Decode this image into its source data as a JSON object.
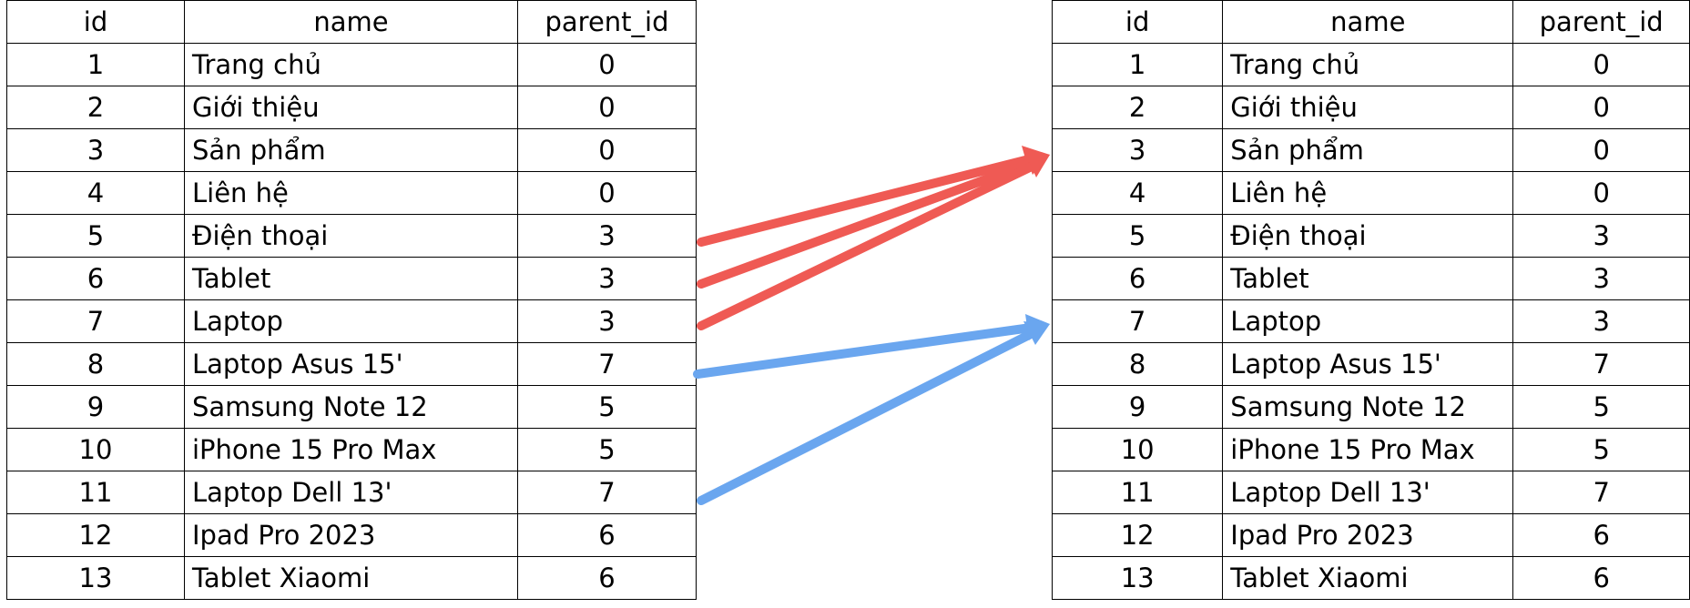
{
  "tables": {
    "left": {
      "headers": {
        "id": "id",
        "name": "name",
        "parent_id": "parent_id"
      },
      "rows": [
        {
          "id": "1",
          "name": "Trang chủ",
          "parent_id": "0"
        },
        {
          "id": "2",
          "name": "Giới thiệu",
          "parent_id": "0"
        },
        {
          "id": "3",
          "name": "Sản phẩm",
          "parent_id": "0"
        },
        {
          "id": "4",
          "name": "Liên hệ",
          "parent_id": "0"
        },
        {
          "id": "5",
          "name": "Điện thoại",
          "parent_id": "3"
        },
        {
          "id": "6",
          "name": "Tablet",
          "parent_id": "3"
        },
        {
          "id": "7",
          "name": "Laptop",
          "parent_id": "3"
        },
        {
          "id": "8",
          "name": "Laptop Asus 15'",
          "parent_id": "7"
        },
        {
          "id": "9",
          "name": "Samsung Note 12",
          "parent_id": "5"
        },
        {
          "id": "10",
          "name": "iPhone 15 Pro Max",
          "parent_id": "5"
        },
        {
          "id": "11",
          "name": "Laptop Dell 13'",
          "parent_id": "7"
        },
        {
          "id": "12",
          "name": "Ipad Pro 2023",
          "parent_id": "6"
        },
        {
          "id": "13",
          "name": "Tablet Xiaomi",
          "parent_id": "6"
        }
      ]
    },
    "right": {
      "headers": {
        "id": "id",
        "name": "name",
        "parent_id": "parent_id"
      },
      "rows": [
        {
          "id": "1",
          "name": "Trang chủ",
          "parent_id": "0"
        },
        {
          "id": "2",
          "name": "Giới thiệu",
          "parent_id": "0"
        },
        {
          "id": "3",
          "name": "Sản phẩm",
          "parent_id": "0"
        },
        {
          "id": "4",
          "name": "Liên hệ",
          "parent_id": "0"
        },
        {
          "id": "5",
          "name": "Điện thoại",
          "parent_id": "3"
        },
        {
          "id": "6",
          "name": "Tablet",
          "parent_id": "3"
        },
        {
          "id": "7",
          "name": "Laptop",
          "parent_id": "3"
        },
        {
          "id": "8",
          "name": "Laptop Asus 15'",
          "parent_id": "7"
        },
        {
          "id": "9",
          "name": "Samsung Note 12",
          "parent_id": "5"
        },
        {
          "id": "10",
          "name": "iPhone 15 Pro Max",
          "parent_id": "5"
        },
        {
          "id": "11",
          "name": "Laptop Dell 13'",
          "parent_id": "7"
        },
        {
          "id": "12",
          "name": "Ipad Pro 2023",
          "parent_id": "6"
        },
        {
          "id": "13",
          "name": "Tablet Xiaomi",
          "parent_id": "6"
        }
      ]
    }
  },
  "arrows": [
    {
      "from_left_row_id": "5",
      "to_right_row_id": "3",
      "color": "#ef5a54"
    },
    {
      "from_left_row_id": "6",
      "to_right_row_id": "3",
      "color": "#ef5a54"
    },
    {
      "from_left_row_id": "7",
      "to_right_row_id": "3",
      "color": "#ef5a54"
    },
    {
      "from_left_row_id": "8",
      "to_right_row_id": "7",
      "color": "#6aa6ef"
    },
    {
      "from_left_row_id": "11",
      "to_right_row_id": "7",
      "color": "#6aa6ef"
    }
  ]
}
